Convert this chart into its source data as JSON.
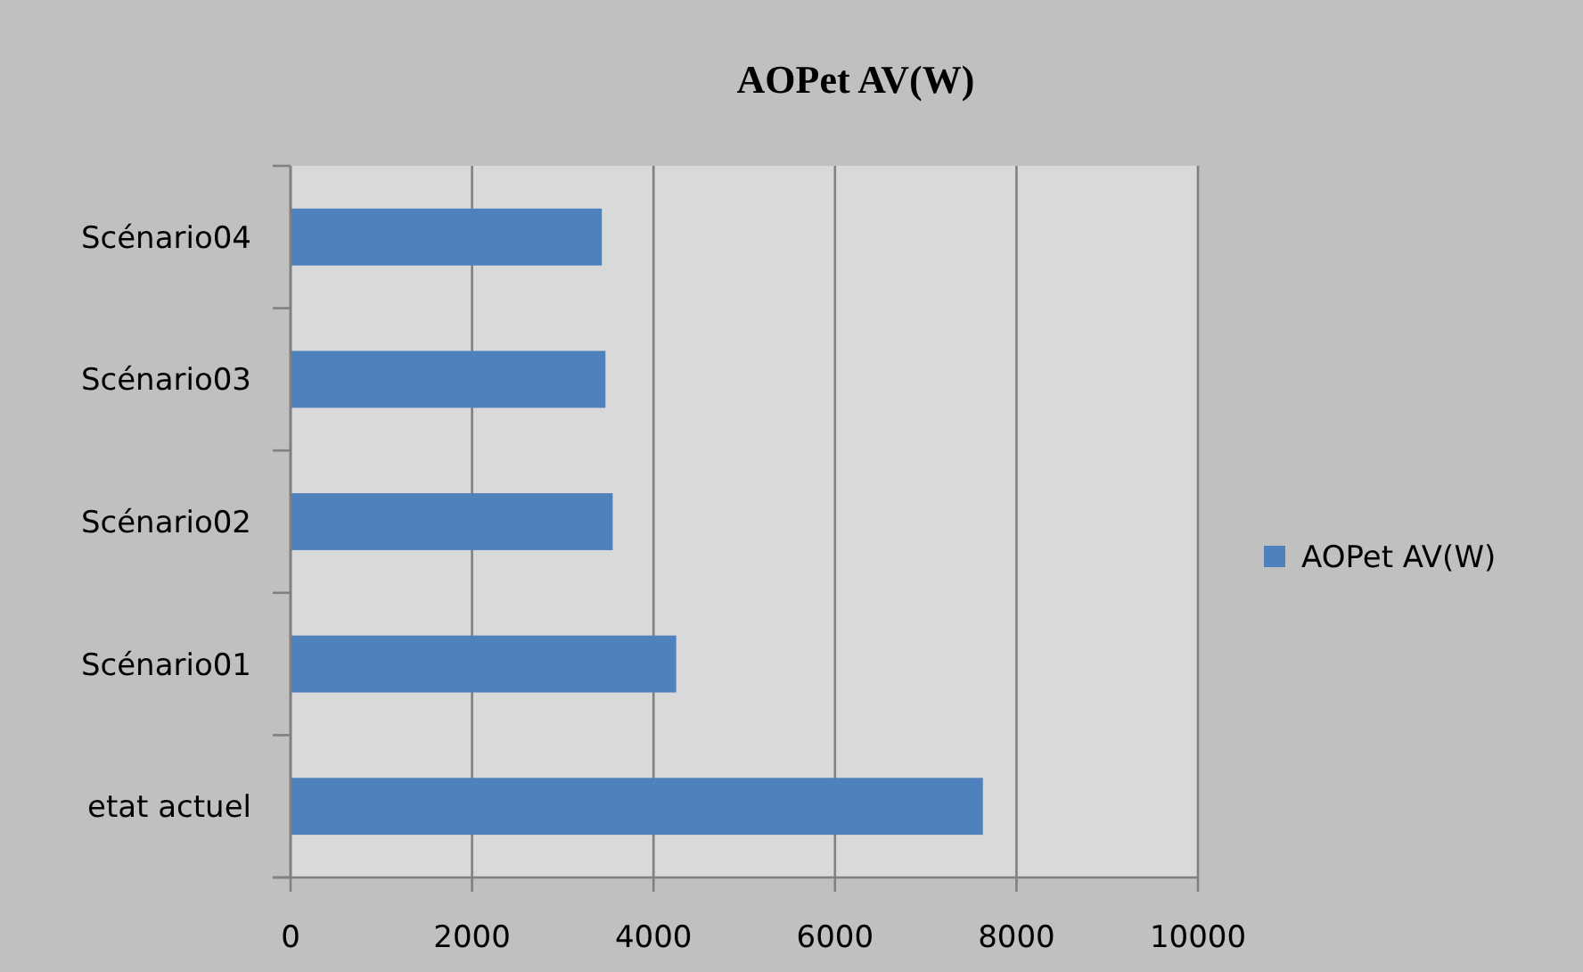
{
  "chart_data": {
    "type": "bar",
    "orientation": "horizontal",
    "title": "AOPet AV(W)",
    "categories": [
      "Scénario04",
      "Scénario03",
      "Scénario02",
      "Scénario01",
      "etat actuel"
    ],
    "series": [
      {
        "name": "AOPet AV(W)",
        "color": "#4f81bd",
        "values": [
          3430,
          3470,
          3550,
          4250,
          7630
        ]
      }
    ],
    "xlim": [
      0,
      10000
    ],
    "xticks": [
      0,
      2000,
      4000,
      6000,
      8000,
      10000
    ],
    "grid": "x",
    "legend": "right"
  }
}
